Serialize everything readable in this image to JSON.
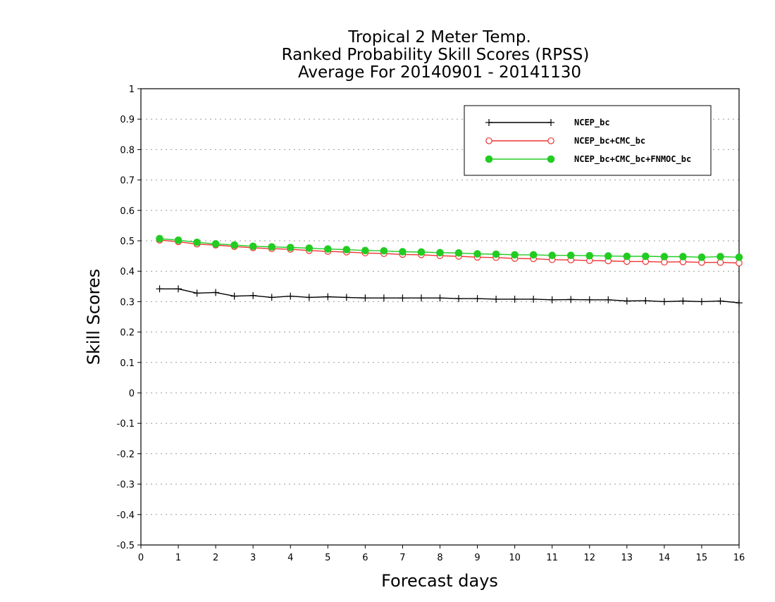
{
  "chart_data": {
    "type": "line",
    "title": [
      "Tropical 2 Meter Temp.",
      "Ranked Probability Skill Scores (RPSS)",
      "Average For 20140901 - 20141130"
    ],
    "xlabel": "Forecast days",
    "ylabel": "Skill Scores",
    "xlim": [
      0,
      16
    ],
    "ylim": [
      -0.5,
      1
    ],
    "xticks": [
      0,
      1,
      2,
      3,
      4,
      5,
      6,
      7,
      8,
      9,
      10,
      11,
      12,
      13,
      14,
      15,
      16
    ],
    "xtick_labels": [
      "0",
      "1",
      "2",
      "3",
      "4",
      "5",
      "6",
      "7",
      "8",
      "9",
      "10",
      "11",
      "12",
      "13",
      "14",
      "15",
      "16"
    ],
    "yticks": [
      -0.5,
      -0.4,
      -0.3,
      -0.2,
      -0.1,
      0,
      0.1,
      0.2,
      0.3,
      0.4,
      0.5,
      0.6,
      0.7,
      0.8,
      0.9,
      1
    ],
    "ytick_labels": [
      "-0.5",
      "-0.4",
      "-0.3",
      "-0.2",
      "-0.1",
      "0",
      "0.1",
      "0.2",
      "0.3",
      "0.4",
      "0.5",
      "0.6",
      "0.7",
      "0.8",
      "0.9",
      "1"
    ],
    "grid": "horizontal dotted",
    "legend_position": "top-right",
    "x": [
      0.5,
      1,
      1.5,
      2,
      2.5,
      3,
      3.5,
      4,
      4.5,
      5,
      5.5,
      6,
      6.5,
      7,
      7.5,
      8,
      8.5,
      9,
      9.5,
      10,
      10.5,
      11,
      11.5,
      12,
      12.5,
      13,
      13.5,
      14,
      14.5,
      15,
      15.5,
      16
    ],
    "series": [
      {
        "name": "NCEP_bc",
        "color": "#000000",
        "marker": "plus",
        "values": [
          0.342,
          0.342,
          0.328,
          0.33,
          0.318,
          0.32,
          0.314,
          0.318,
          0.314,
          0.316,
          0.314,
          0.312,
          0.312,
          0.312,
          0.312,
          0.312,
          0.31,
          0.31,
          0.308,
          0.308,
          0.308,
          0.306,
          0.307,
          0.306,
          0.306,
          0.302,
          0.303,
          0.3,
          0.302,
          0.3,
          0.302,
          0.296
        ]
      },
      {
        "name": "NCEP_bc+CMC_bc",
        "color": "#ee3333",
        "marker": "open-circle",
        "values": [
          0.502,
          0.497,
          0.489,
          0.486,
          0.481,
          0.477,
          0.474,
          0.472,
          0.468,
          0.465,
          0.463,
          0.46,
          0.458,
          0.455,
          0.454,
          0.451,
          0.449,
          0.446,
          0.445,
          0.442,
          0.441,
          0.438,
          0.437,
          0.435,
          0.434,
          0.432,
          0.432,
          0.43,
          0.431,
          0.429,
          0.429,
          0.427
        ]
      },
      {
        "name": "NCEP_bc+CMC_bc+FNMOC_bc",
        "color": "#22cc22",
        "marker": "filled-circle",
        "values": [
          0.507,
          0.502,
          0.495,
          0.49,
          0.486,
          0.482,
          0.48,
          0.478,
          0.476,
          0.473,
          0.471,
          0.468,
          0.467,
          0.464,
          0.463,
          0.461,
          0.46,
          0.457,
          0.456,
          0.454,
          0.454,
          0.452,
          0.452,
          0.451,
          0.45,
          0.449,
          0.449,
          0.448,
          0.448,
          0.446,
          0.448,
          0.446
        ]
      }
    ]
  }
}
